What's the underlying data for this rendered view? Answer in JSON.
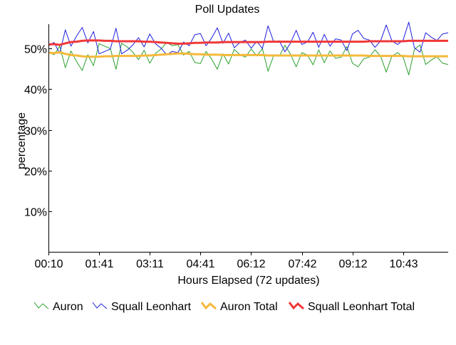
{
  "chart_data": {
    "type": "line",
    "title": "Poll Updates",
    "xlabel": "Hours Elapsed (72 updates)",
    "ylabel": "percentage",
    "ylim": [
      0,
      56
    ],
    "y_ticks": [
      {
        "value": 10,
        "label": "10%"
      },
      {
        "value": 20,
        "label": "20%"
      },
      {
        "value": 30,
        "label": "30%"
      },
      {
        "value": 40,
        "label": "40%"
      },
      {
        "value": 50,
        "label": "50%"
      }
    ],
    "x_ticks": [
      {
        "index": 0,
        "label": "00:10"
      },
      {
        "index": 9,
        "label": "01:41"
      },
      {
        "index": 18,
        "label": "03:11"
      },
      {
        "index": 27,
        "label": "04:41"
      },
      {
        "index": 36,
        "label": "06:12"
      },
      {
        "index": 45,
        "label": "07:42"
      },
      {
        "index": 54,
        "label": "09:12"
      },
      {
        "index": 63,
        "label": "10:43"
      }
    ],
    "n_updates": 72,
    "grid": false,
    "legend_position": "bottom",
    "series": [
      {
        "name": "Auron",
        "color": "#2ca02c",
        "width": 1,
        "values": [
          49.2,
          48.5,
          50.6,
          45.3,
          49.4,
          46.8,
          44.6,
          48.5,
          45.8,
          51.2,
          50.6,
          50.0,
          44.9,
          51.3,
          50.4,
          49.1,
          47.3,
          49.6,
          46.4,
          48.8,
          49.9,
          51.5,
          50.7,
          51.0,
          48.4,
          49.3,
          46.6,
          46.3,
          49.3,
          47.4,
          44.9,
          48.7,
          46.2,
          49.8,
          48.5,
          47.9,
          49.9,
          48.2,
          50.0,
          44.4,
          48.3,
          48.1,
          50.8,
          48.6,
          45.5,
          49.0,
          48.4,
          46.0,
          49.7,
          46.5,
          49.4,
          47.6,
          47.9,
          50.5,
          46.4,
          45.5,
          47.5,
          47.9,
          49.7,
          48.1,
          44.2,
          48.1,
          49.0,
          47.9,
          43.5,
          49.8,
          50.9,
          46.1,
          47.2,
          48.0,
          46.4,
          46.1
        ]
      },
      {
        "name": "Squall Leonhart",
        "color": "#1f1fe0",
        "width": 1,
        "values": [
          50.8,
          51.5,
          48.8,
          54.6,
          50.6,
          53.1,
          55.2,
          51.4,
          54.2,
          48.7,
          49.3,
          49.9,
          55.0,
          48.7,
          49.6,
          50.9,
          52.7,
          50.4,
          53.6,
          51.2,
          50.1,
          48.5,
          49.3,
          49.0,
          51.6,
          50.7,
          53.4,
          53.7,
          50.7,
          52.6,
          55.1,
          51.3,
          53.8,
          50.2,
          51.5,
          52.1,
          50.1,
          51.8,
          50.0,
          55.6,
          51.7,
          51.9,
          49.2,
          51.4,
          54.5,
          51.0,
          51.6,
          54.0,
          50.3,
          53.5,
          50.6,
          52.4,
          52.1,
          49.5,
          53.6,
          54.5,
          52.5,
          52.1,
          50.3,
          51.9,
          55.8,
          51.9,
          51.0,
          52.1,
          56.5,
          50.2,
          49.1,
          53.9,
          52.8,
          52.0,
          53.6,
          53.9
        ]
      },
      {
        "name": "Auron Total",
        "color": "#f5b93a",
        "width": 3,
        "values": [
          49.0,
          48.9,
          49.1,
          48.7,
          48.4,
          48.3,
          48.1,
          48.0,
          48.0,
          48.0,
          48.1,
          48.1,
          48.2,
          48.2,
          48.2,
          48.2,
          48.2,
          48.3,
          48.3,
          48.4,
          48.5,
          48.6,
          48.7,
          48.8,
          48.8,
          48.7,
          48.6,
          48.6,
          48.5,
          48.5,
          48.5,
          48.4,
          48.4,
          48.4,
          48.4,
          48.4,
          48.4,
          48.4,
          48.4,
          48.3,
          48.3,
          48.3,
          48.3,
          48.3,
          48.3,
          48.3,
          48.3,
          48.3,
          48.3,
          48.3,
          48.3,
          48.3,
          48.3,
          48.3,
          48.3,
          48.3,
          48.3,
          48.2,
          48.2,
          48.2,
          48.2,
          48.2,
          48.2,
          48.2,
          48.1,
          48.1,
          48.1,
          48.1,
          48.1,
          48.1,
          48.1,
          48.1
        ]
      },
      {
        "name": "Squall Leonhart Total",
        "color": "#f03838",
        "width": 3,
        "values": [
          51.0,
          51.1,
          50.9,
          51.3,
          51.6,
          51.7,
          51.9,
          52.0,
          52.0,
          52.0,
          51.9,
          51.9,
          51.8,
          51.8,
          51.8,
          51.8,
          51.8,
          51.7,
          51.7,
          51.6,
          51.5,
          51.4,
          51.3,
          51.2,
          51.2,
          51.3,
          51.4,
          51.4,
          51.5,
          51.5,
          51.5,
          51.6,
          51.6,
          51.6,
          51.6,
          51.6,
          51.6,
          51.6,
          51.6,
          51.7,
          51.7,
          51.7,
          51.7,
          51.7,
          51.7,
          51.7,
          51.7,
          51.7,
          51.7,
          51.7,
          51.7,
          51.7,
          51.7,
          51.7,
          51.7,
          51.7,
          51.7,
          51.8,
          51.8,
          51.8,
          51.8,
          51.8,
          51.8,
          51.8,
          51.9,
          51.9,
          51.9,
          51.9,
          51.9,
          51.9,
          51.9,
          51.9
        ]
      }
    ]
  }
}
